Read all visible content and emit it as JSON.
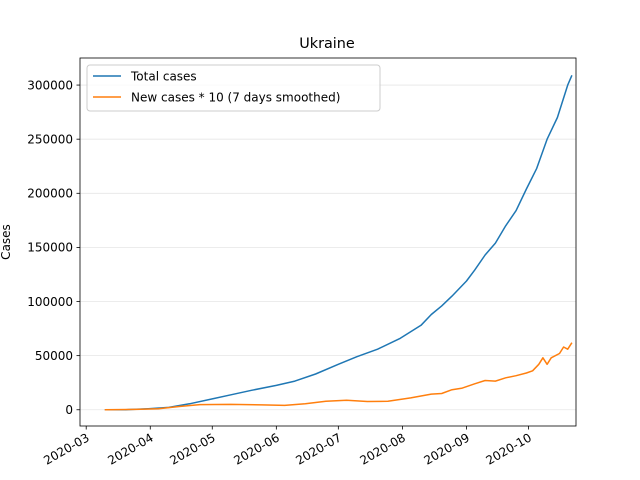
{
  "chart_data": {
    "type": "line",
    "title": "Ukraine",
    "xlabel": "",
    "ylabel": "Cases",
    "xlim": [
      "2020-02-27",
      "2020-10-24"
    ],
    "ylim": [
      -15000,
      325000
    ],
    "grid": "horizontal",
    "legend_position": "top-left",
    "x_ticks": [
      "2020-03",
      "2020-04",
      "2020-05",
      "2020-06",
      "2020-07",
      "2020-08",
      "2020-09",
      "2020-10"
    ],
    "y_ticks": [
      "0",
      "50000",
      "100000",
      "150000",
      "200000",
      "250000",
      "300000"
    ],
    "series": [
      {
        "name": "Total cases",
        "color": "#1f77b4",
        "points": [
          [
            "2020-03-10",
            0
          ],
          [
            "2020-03-20",
            50
          ],
          [
            "2020-03-31",
            1000
          ],
          [
            "2020-04-10",
            2200
          ],
          [
            "2020-04-20",
            5500
          ],
          [
            "2020-05-01",
            10000
          ],
          [
            "2020-05-10",
            13800
          ],
          [
            "2020-05-20",
            18000
          ],
          [
            "2020-06-01",
            22500
          ],
          [
            "2020-06-10",
            26500
          ],
          [
            "2020-06-20",
            33000
          ],
          [
            "2020-07-01",
            42000
          ],
          [
            "2020-07-10",
            49000
          ],
          [
            "2020-07-20",
            56000
          ],
          [
            "2020-07-31",
            66000
          ],
          [
            "2020-08-10",
            78000
          ],
          [
            "2020-08-15",
            88000
          ],
          [
            "2020-08-20",
            96000
          ],
          [
            "2020-08-25",
            105000
          ],
          [
            "2020-09-01",
            119000
          ],
          [
            "2020-09-05",
            129000
          ],
          [
            "2020-09-10",
            143000
          ],
          [
            "2020-09-15",
            154000
          ],
          [
            "2020-09-20",
            170000
          ],
          [
            "2020-09-25",
            184000
          ],
          [
            "2020-09-30",
            204000
          ],
          [
            "2020-10-05",
            223000
          ],
          [
            "2020-10-10",
            250000
          ],
          [
            "2020-10-15",
            270000
          ],
          [
            "2020-10-20",
            300000
          ],
          [
            "2020-10-22",
            309000
          ]
        ]
      },
      {
        "name": "New cases * 10 (7 days smoothed)",
        "color": "#ff7f0e",
        "points": [
          [
            "2020-03-10",
            0
          ],
          [
            "2020-03-25",
            300
          ],
          [
            "2020-04-05",
            1000
          ],
          [
            "2020-04-15",
            3000
          ],
          [
            "2020-04-25",
            4800
          ],
          [
            "2020-05-10",
            5000
          ],
          [
            "2020-05-25",
            4500
          ],
          [
            "2020-06-05",
            4000
          ],
          [
            "2020-06-15",
            5500
          ],
          [
            "2020-06-25",
            7800
          ],
          [
            "2020-07-05",
            8800
          ],
          [
            "2020-07-15",
            7600
          ],
          [
            "2020-07-25",
            7800
          ],
          [
            "2020-08-05",
            11000
          ],
          [
            "2020-08-15",
            14500
          ],
          [
            "2020-08-20",
            15000
          ],
          [
            "2020-08-25",
            18500
          ],
          [
            "2020-08-30",
            20000
          ],
          [
            "2020-09-05",
            24000
          ],
          [
            "2020-09-10",
            27000
          ],
          [
            "2020-09-15",
            26500
          ],
          [
            "2020-09-20",
            29500
          ],
          [
            "2020-09-25",
            31500
          ],
          [
            "2020-09-30",
            34000
          ],
          [
            "2020-10-03",
            36000
          ],
          [
            "2020-10-06",
            42000
          ],
          [
            "2020-10-08",
            48000
          ],
          [
            "2020-10-10",
            42000
          ],
          [
            "2020-10-12",
            48000
          ],
          [
            "2020-10-16",
            52000
          ],
          [
            "2020-10-18",
            58000
          ],
          [
            "2020-10-20",
            56000
          ],
          [
            "2020-10-22",
            62000
          ]
        ]
      }
    ]
  }
}
